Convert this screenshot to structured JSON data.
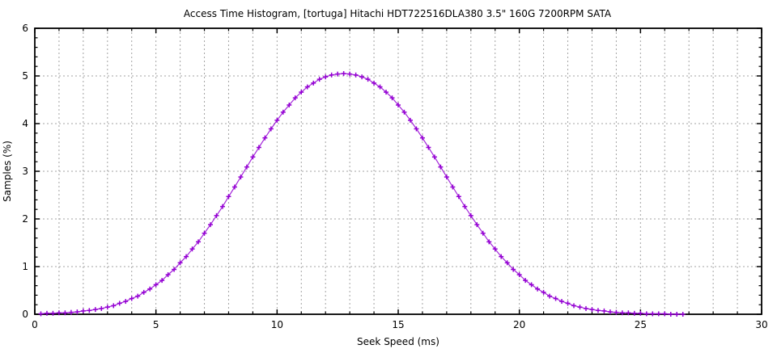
{
  "page": {
    "background_color": "#ffffff"
  },
  "chart_data": {
    "type": "line",
    "title": "Access Time Histogram, [tortuga] Hitachi HDT722516DLA380 3.5\" 160G 7200RPM SATA",
    "xlabel": "Seek Speed (ms)",
    "ylabel": "Samples (%)",
    "xlim": [
      0,
      30
    ],
    "ylim": [
      0,
      6
    ],
    "x_major_tick_step": 5,
    "x_minor_tick_step": 1,
    "y_major_tick_step": 1,
    "y_minor_tick_step": 0.2,
    "x_tick_labels": [
      "0",
      "5",
      "10",
      "15",
      "20",
      "25",
      "30"
    ],
    "y_tick_labels": [
      "0",
      "1",
      "2",
      "3",
      "4",
      "5",
      "6"
    ],
    "grid": {
      "on": true,
      "vertical_step": 1,
      "horizontal_step": 1,
      "color": "#a3a3a3",
      "style": "dotted"
    },
    "legend_position": "none",
    "colors": {
      "series": "#9400d3",
      "axis": "#000000",
      "background": "#ffffff"
    },
    "series": [
      {
        "marker": "plus",
        "color": "#9400d3",
        "x": [
          0.25,
          0.5,
          0.75,
          1.0,
          1.25,
          1.5,
          1.75,
          2.0,
          2.25,
          2.5,
          2.75,
          3.0,
          3.25,
          3.5,
          3.75,
          4.0,
          4.25,
          4.5,
          4.75,
          5.0,
          5.25,
          5.5,
          5.75,
          6.0,
          6.25,
          6.5,
          6.75,
          7.0,
          7.25,
          7.5,
          7.75,
          8.0,
          8.25,
          8.5,
          8.75,
          9.0,
          9.25,
          9.5,
          9.75,
          10.0,
          10.25,
          10.5,
          10.75,
          11.0,
          11.25,
          11.5,
          11.75,
          12.0,
          12.25,
          12.5,
          12.75,
          13.0,
          13.25,
          13.5,
          13.75,
          14.0,
          14.25,
          14.5,
          14.75,
          15.0,
          15.25,
          15.5,
          15.75,
          16.0,
          16.25,
          16.5,
          16.75,
          17.0,
          17.25,
          17.5,
          17.75,
          18.0,
          18.25,
          18.5,
          18.75,
          19.0,
          19.25,
          19.5,
          19.75,
          20.0,
          20.25,
          20.5,
          20.75,
          21.0,
          21.25,
          21.5,
          21.75,
          22.0,
          22.25,
          22.5,
          22.75,
          23.0,
          23.25,
          23.5,
          23.75,
          24.0,
          24.25,
          24.5,
          24.75,
          25.0,
          25.25,
          25.5,
          25.75,
          26.0,
          26.25,
          26.5,
          26.75
        ],
        "y": [
          0.01,
          0.02,
          0.02,
          0.03,
          0.03,
          0.04,
          0.05,
          0.07,
          0.08,
          0.1,
          0.12,
          0.15,
          0.18,
          0.23,
          0.27,
          0.33,
          0.38,
          0.46,
          0.53,
          0.62,
          0.71,
          0.83,
          0.94,
          1.08,
          1.21,
          1.37,
          1.52,
          1.7,
          1.88,
          2.07,
          2.26,
          2.47,
          2.67,
          2.88,
          3.09,
          3.3,
          3.5,
          3.7,
          3.89,
          4.07,
          4.24,
          4.39,
          4.54,
          4.66,
          4.77,
          4.85,
          4.93,
          4.98,
          5.02,
          5.04,
          5.05,
          5.04,
          5.02,
          4.98,
          4.93,
          4.85,
          4.77,
          4.66,
          4.54,
          4.39,
          4.24,
          4.07,
          3.89,
          3.7,
          3.5,
          3.3,
          3.09,
          2.88,
          2.67,
          2.47,
          2.26,
          2.07,
          1.88,
          1.7,
          1.52,
          1.37,
          1.21,
          1.08,
          0.94,
          0.83,
          0.71,
          0.62,
          0.53,
          0.46,
          0.38,
          0.33,
          0.27,
          0.23,
          0.18,
          0.15,
          0.12,
          0.1,
          0.08,
          0.07,
          0.05,
          0.04,
          0.03,
          0.03,
          0.02,
          0.02,
          0.01,
          0.01,
          0.01,
          0.01,
          0.0,
          0.0,
          0.0
        ]
      }
    ]
  }
}
